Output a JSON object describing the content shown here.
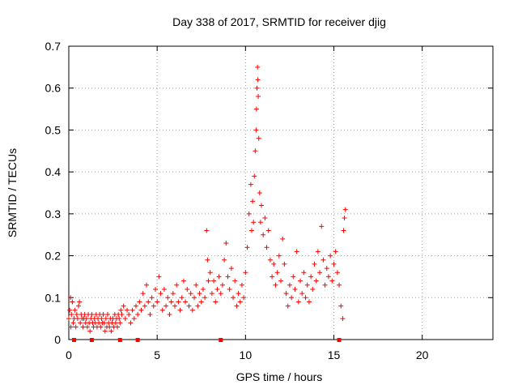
{
  "chart_data": {
    "type": "scatter",
    "title": "Day 338 of 2017, SRMTID for receiver djig",
    "xlabel": "GPS time / hours",
    "ylabel": "SRMTID / TECUs",
    "xlim": [
      0,
      24
    ],
    "ylim": [
      0,
      0.7
    ],
    "xticks": [
      0,
      5,
      10,
      15,
      20
    ],
    "yticks": [
      0,
      0.1,
      0.2,
      0.3,
      0.4,
      0.5,
      0.6,
      0.7
    ],
    "grid": true,
    "marker": "+",
    "color": "#ff0000",
    "series": [
      {
        "name": "SRMTID",
        "points": [
          [
            0.0,
            0.05
          ],
          [
            0.05,
            0.07
          ],
          [
            0.1,
            0.1
          ],
          [
            0.12,
            0.03
          ],
          [
            0.15,
            0.06
          ],
          [
            0.2,
            0.09
          ],
          [
            0.25,
            0.04
          ],
          [
            0.3,
            0.05
          ],
          [
            0.35,
            0.07
          ],
          [
            0.4,
            0.03
          ],
          [
            0.45,
            0.06
          ],
          [
            0.5,
            0.05
          ],
          [
            0.55,
            0.08
          ],
          [
            0.6,
            0.09
          ],
          [
            0.65,
            0.04
          ],
          [
            0.7,
            0.06
          ],
          [
            0.75,
            0.05
          ],
          [
            0.8,
            0.03
          ],
          [
            0.85,
            0.05
          ],
          [
            0.9,
            0.06
          ],
          [
            0.95,
            0.04
          ],
          [
            1.0,
            0.05
          ],
          [
            1.05,
            0.03
          ],
          [
            1.1,
            0.06
          ],
          [
            1.15,
            0.04
          ],
          [
            1.2,
            0.02
          ],
          [
            1.25,
            0.05
          ],
          [
            1.3,
            0.06
          ],
          [
            1.35,
            0.04
          ],
          [
            1.4,
            0.03
          ],
          [
            1.45,
            0.05
          ],
          [
            1.5,
            0.04
          ],
          [
            1.55,
            0.06
          ],
          [
            1.6,
            0.03
          ],
          [
            1.65,
            0.05
          ],
          [
            1.7,
            0.04
          ],
          [
            1.75,
            0.06
          ],
          [
            1.8,
            0.03
          ],
          [
            1.85,
            0.05
          ],
          [
            1.9,
            0.04
          ],
          [
            1.95,
            0.06
          ],
          [
            2.0,
            0.04
          ],
          [
            2.05,
            0.02
          ],
          [
            2.1,
            0.05
          ],
          [
            2.15,
            0.03
          ],
          [
            2.2,
            0.06
          ],
          [
            2.25,
            0.04
          ],
          [
            2.3,
            0.03
          ],
          [
            2.35,
            0.05
          ],
          [
            2.4,
            0.02
          ],
          [
            2.45,
            0.04
          ],
          [
            2.5,
            0.05
          ],
          [
            2.55,
            0.03
          ],
          [
            2.6,
            0.06
          ],
          [
            2.65,
            0.04
          ],
          [
            2.7,
            0.05
          ],
          [
            2.75,
            0.03
          ],
          [
            2.8,
            0.06
          ],
          [
            2.85,
            0.05
          ],
          [
            2.9,
            0.04
          ],
          [
            2.95,
            0.07
          ],
          [
            3.0,
            0.06
          ],
          [
            3.1,
            0.08
          ],
          [
            3.2,
            0.05
          ],
          [
            3.3,
            0.07
          ],
          [
            3.4,
            0.06
          ],
          [
            3.5,
            0.04
          ],
          [
            3.6,
            0.07
          ],
          [
            3.7,
            0.05
          ],
          [
            3.8,
            0.08
          ],
          [
            3.9,
            0.06
          ],
          [
            4.0,
            0.09
          ],
          [
            4.1,
            0.07
          ],
          [
            4.2,
            0.11
          ],
          [
            4.3,
            0.08
          ],
          [
            4.4,
            0.13
          ],
          [
            4.5,
            0.09
          ],
          [
            4.6,
            0.06
          ],
          [
            4.7,
            0.1
          ],
          [
            4.8,
            0.08
          ],
          [
            4.9,
            0.12
          ],
          [
            5.0,
            0.09
          ],
          [
            5.1,
            0.15
          ],
          [
            5.2,
            0.11
          ],
          [
            5.3,
            0.07
          ],
          [
            5.4,
            0.12
          ],
          [
            5.5,
            0.08
          ],
          [
            5.6,
            0.1
          ],
          [
            5.7,
            0.06
          ],
          [
            5.8,
            0.09
          ],
          [
            5.9,
            0.11
          ],
          [
            6.0,
            0.08
          ],
          [
            6.1,
            0.13
          ],
          [
            6.2,
            0.09
          ],
          [
            6.3,
            0.07
          ],
          [
            6.4,
            0.1
          ],
          [
            6.5,
            0.14
          ],
          [
            6.6,
            0.09
          ],
          [
            6.7,
            0.12
          ],
          [
            6.8,
            0.08
          ],
          [
            6.9,
            0.11
          ],
          [
            7.0,
            0.07
          ],
          [
            7.1,
            0.1
          ],
          [
            7.2,
            0.13
          ],
          [
            7.3,
            0.08
          ],
          [
            7.4,
            0.11
          ],
          [
            7.5,
            0.09
          ],
          [
            7.6,
            0.12
          ],
          [
            7.7,
            0.1
          ],
          [
            7.8,
            0.26
          ],
          [
            7.85,
            0.19
          ],
          [
            7.9,
            0.14
          ],
          [
            8.0,
            0.16
          ],
          [
            8.1,
            0.11
          ],
          [
            8.2,
            0.14
          ],
          [
            8.3,
            0.09
          ],
          [
            8.4,
            0.12
          ],
          [
            8.5,
            0.15
          ],
          [
            8.6,
            0.11
          ],
          [
            8.7,
            0.13
          ],
          [
            8.8,
            0.19
          ],
          [
            8.9,
            0.23
          ],
          [
            9.0,
            0.15
          ],
          [
            9.1,
            0.12
          ],
          [
            9.2,
            0.17
          ],
          [
            9.3,
            0.1
          ],
          [
            9.4,
            0.14
          ],
          [
            9.5,
            0.08
          ],
          [
            9.6,
            0.11
          ],
          [
            9.7,
            0.09
          ],
          [
            9.8,
            0.13
          ],
          [
            9.9,
            0.1
          ],
          [
            10.0,
            0.16
          ],
          [
            10.1,
            0.22
          ],
          [
            10.2,
            0.3
          ],
          [
            10.3,
            0.37
          ],
          [
            10.35,
            0.26
          ],
          [
            10.4,
            0.33
          ],
          [
            10.45,
            0.28
          ],
          [
            10.5,
            0.39
          ],
          [
            10.55,
            0.45
          ],
          [
            10.6,
            0.5
          ],
          [
            10.62,
            0.55
          ],
          [
            10.65,
            0.6
          ],
          [
            10.68,
            0.65
          ],
          [
            10.7,
            0.62
          ],
          [
            10.72,
            0.58
          ],
          [
            10.75,
            0.48
          ],
          [
            10.8,
            0.35
          ],
          [
            10.85,
            0.28
          ],
          [
            10.9,
            0.32
          ],
          [
            11.0,
            0.25
          ],
          [
            11.1,
            0.29
          ],
          [
            11.2,
            0.22
          ],
          [
            11.3,
            0.26
          ],
          [
            11.4,
            0.19
          ],
          [
            11.5,
            0.15
          ],
          [
            11.6,
            0.18
          ],
          [
            11.7,
            0.13
          ],
          [
            11.8,
            0.16
          ],
          [
            11.9,
            0.2
          ],
          [
            12.0,
            0.14
          ],
          [
            12.1,
            0.24
          ],
          [
            12.2,
            0.18
          ],
          [
            12.3,
            0.11
          ],
          [
            12.4,
            0.08
          ],
          [
            12.5,
            0.13
          ],
          [
            12.6,
            0.1
          ],
          [
            12.7,
            0.15
          ],
          [
            12.8,
            0.12
          ],
          [
            12.9,
            0.21
          ],
          [
            13.0,
            0.09
          ],
          [
            13.1,
            0.14
          ],
          [
            13.2,
            0.11
          ],
          [
            13.3,
            0.16
          ],
          [
            13.4,
            0.1
          ],
          [
            13.5,
            0.13
          ],
          [
            13.6,
            0.09
          ],
          [
            13.7,
            0.15
          ],
          [
            13.8,
            0.12
          ],
          [
            13.9,
            0.18
          ],
          [
            14.0,
            0.14
          ],
          [
            14.1,
            0.21
          ],
          [
            14.2,
            0.16
          ],
          [
            14.3,
            0.27
          ],
          [
            14.4,
            0.19
          ],
          [
            14.5,
            0.13
          ],
          [
            14.6,
            0.17
          ],
          [
            14.7,
            0.15
          ],
          [
            14.8,
            0.2
          ],
          [
            14.9,
            0.14
          ],
          [
            15.0,
            0.18
          ],
          [
            15.1,
            0.21
          ],
          [
            15.2,
            0.16
          ],
          [
            15.3,
            0.13
          ],
          [
            15.4,
            0.08
          ],
          [
            15.5,
            0.05
          ],
          [
            15.55,
            0.26
          ],
          [
            15.6,
            0.29
          ],
          [
            15.65,
            0.31
          ]
        ]
      }
    ],
    "gap_markers_x": [
      0.3,
      1.3,
      2.9,
      3.9,
      8.6,
      15.3
    ]
  }
}
